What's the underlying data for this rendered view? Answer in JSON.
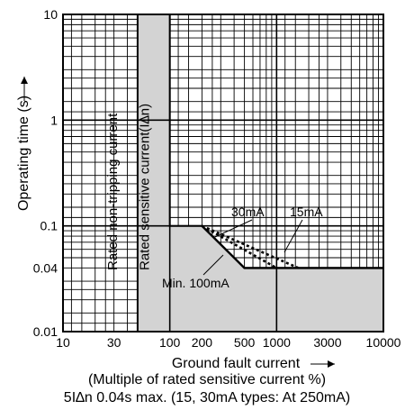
{
  "chart_data": {
    "type": "line",
    "title": "",
    "xlabel": "Ground fault current",
    "xlabel_sub": "(Multiple of rated sensitive current %)",
    "ylabel": "Operating time (s)",
    "x_scale": "log",
    "y_scale": "log",
    "xlim": [
      10,
      10000
    ],
    "ylim": [
      0.01,
      10
    ],
    "grid": true,
    "x_ticks": [
      {
        "value": 10,
        "label": "10"
      },
      {
        "value": 30,
        "label": "30"
      },
      {
        "value": 100,
        "label": "100"
      },
      {
        "value": 200,
        "label": "200"
      },
      {
        "value": 500,
        "label": "500"
      },
      {
        "value": 1000,
        "label": "1000"
      },
      {
        "value": 3000,
        "label": "3000"
      },
      {
        "value": 10000,
        "label": "10000"
      }
    ],
    "y_ticks": [
      {
        "value": 10,
        "label": "10"
      },
      {
        "value": 1,
        "label": "1"
      },
      {
        "value": 0.1,
        "label": "0.1"
      },
      {
        "value": 0.04,
        "label": "0.04"
      },
      {
        "value": 0.01,
        "label": "0.01"
      }
    ],
    "region_boundary": {
      "x": [
        50,
        50,
        100,
        100,
        200,
        500,
        10000,
        10000
      ],
      "y": [
        0.01,
        10,
        10,
        0.1,
        0.1,
        0.04,
        0.04,
        0.01
      ]
    },
    "series": [
      {
        "name": "Min. 100mA",
        "style": "solid",
        "x": [
          200,
          500,
          10000
        ],
        "y": [
          0.1,
          0.04,
          0.04
        ]
      },
      {
        "name": "30mA",
        "style": "dotted",
        "x": [
          200,
          1000
        ],
        "y": [
          0.1,
          0.04
        ]
      },
      {
        "name": "15mA",
        "style": "dotted",
        "x": [
          200,
          1600
        ],
        "y": [
          0.1,
          0.04
        ]
      }
    ],
    "vertical_labels": [
      {
        "x": 50,
        "text": "Rated non-tripping current"
      },
      {
        "x": 100,
        "text": "Rated sensitive current(I∆n)"
      }
    ]
  },
  "caption": "5I∆n  0.04s max. (15, 30mA types: At 250mA)"
}
